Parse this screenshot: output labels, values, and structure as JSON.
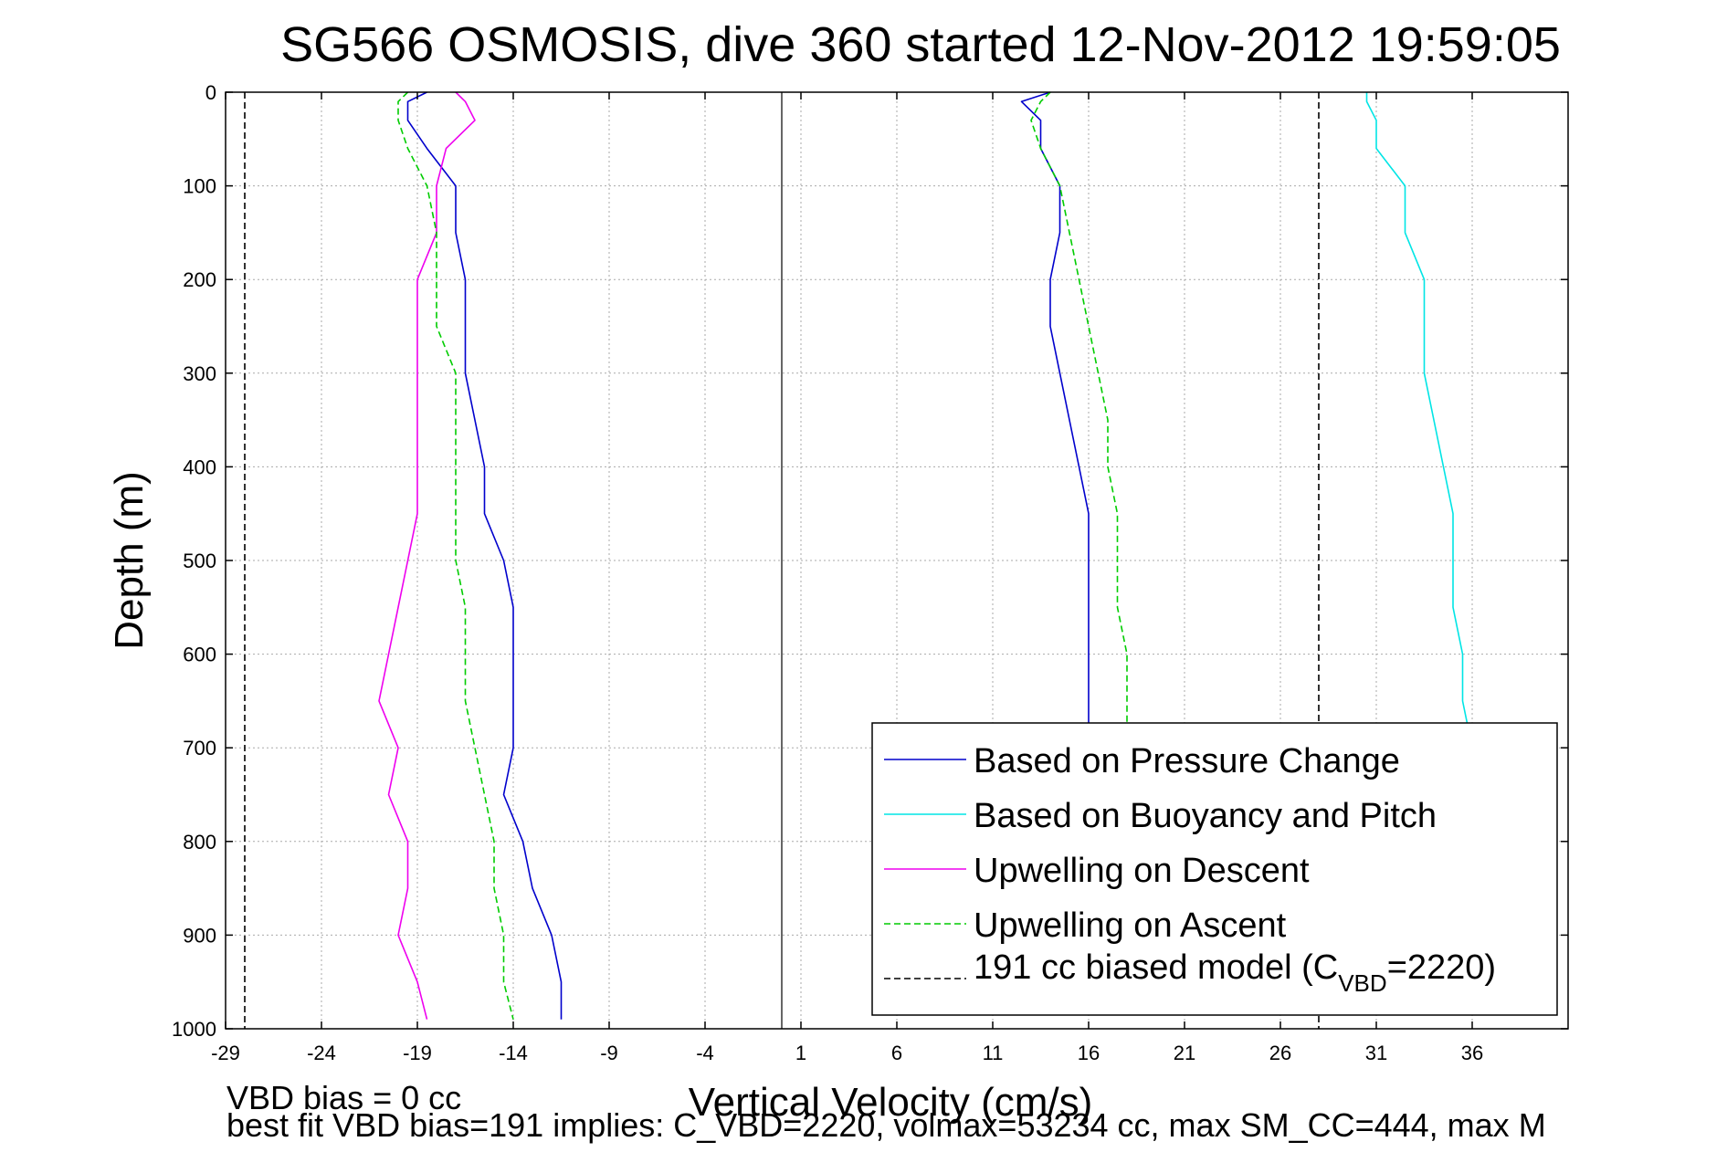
{
  "chart_data": {
    "type": "line",
    "title": "SG566 OSMOSIS, dive 360 started 12-Nov-2012 19:59:05",
    "xlabel": "Vertical Velocity (cm/s)",
    "ylabel": "Depth (m)",
    "xlim": [
      -29,
      41
    ],
    "ylim": [
      0,
      1000
    ],
    "y_reversed": true,
    "grid": true,
    "x_ticks": [
      -29,
      -24,
      -19,
      -14,
      -9,
      -4,
      1,
      6,
      11,
      16,
      21,
      26,
      31,
      36
    ],
    "x_tick_labels": [
      "-29",
      "-24",
      "-19",
      "-14",
      "-9",
      "-4",
      "1",
      "6",
      "11",
      "16",
      "21",
      "26",
      "31",
      "36"
    ],
    "y_ticks": [
      0,
      100,
      200,
      300,
      400,
      500,
      600,
      700,
      800,
      900,
      1000
    ],
    "y_tick_labels": [
      "0",
      "100",
      "200",
      "300",
      "400",
      "500",
      "600",
      "700",
      "800",
      "900",
      "1000"
    ],
    "zero_line_x": 0,
    "legend_position": "bottom-right",
    "legend": {
      "pressure": "Based on Pressure Change",
      "buoyancy": "Based on Buoyancy and Pitch",
      "descent": "Upwelling on Descent",
      "ascent": "Upwelling on Ascent",
      "model_prefix": "191 cc biased model (C",
      "model_sub": "VBD",
      "model_suffix": "=2220)"
    },
    "series": [
      {
        "key": "pressure_descent",
        "color": "#0000cc",
        "style": "solid",
        "depth": [
          0,
          10,
          30,
          60,
          100,
          150,
          200,
          250,
          300,
          350,
          400,
          450,
          500,
          550,
          600,
          650,
          700,
          750,
          800,
          850,
          900,
          950,
          990
        ],
        "values": [
          -18.5,
          -19.5,
          -19.5,
          -18.5,
          -17.0,
          -17.0,
          -16.5,
          -16.5,
          -16.5,
          -16.0,
          -15.5,
          -15.5,
          -14.5,
          -14.0,
          -14.0,
          -14.0,
          -14.0,
          -14.5,
          -13.5,
          -13.0,
          -12.0,
          -11.5,
          -11.5
        ]
      },
      {
        "key": "pressure_ascent",
        "color": "#0000cc",
        "style": "solid",
        "depth": [
          0,
          10,
          30,
          60,
          100,
          150,
          200,
          250,
          300,
          350,
          400,
          450,
          500,
          550,
          600,
          650,
          700
        ],
        "values": [
          14.0,
          12.5,
          13.5,
          13.5,
          14.5,
          14.5,
          14.0,
          14.0,
          14.5,
          15.0,
          15.5,
          16.0,
          16.0,
          16.0,
          16.0,
          16.0,
          16.0
        ]
      },
      {
        "key": "buoyancy_ascent",
        "color": "#00e5e5",
        "style": "solid",
        "depth": [
          0,
          10,
          30,
          60,
          100,
          150,
          200,
          250,
          300,
          350,
          400,
          450,
          500,
          550,
          600,
          650,
          700,
          750
        ],
        "values": [
          30.5,
          30.5,
          31.0,
          31.0,
          32.5,
          32.5,
          33.5,
          33.5,
          33.5,
          34.0,
          34.5,
          35.0,
          35.0,
          35.0,
          35.5,
          35.5,
          36.0,
          36.0
        ]
      },
      {
        "key": "upwelling_descent",
        "color": "#ee00ee",
        "style": "solid",
        "depth": [
          0,
          10,
          30,
          60,
          100,
          150,
          200,
          250,
          300,
          350,
          400,
          450,
          500,
          550,
          600,
          650,
          700,
          750,
          800,
          850,
          900,
          950,
          990
        ],
        "values": [
          -17.0,
          -16.5,
          -16.0,
          -17.5,
          -18.0,
          -18.0,
          -19.0,
          -19.0,
          -19.0,
          -19.0,
          -19.0,
          -19.0,
          -19.5,
          -20.0,
          -20.5,
          -21.0,
          -20.0,
          -20.5,
          -19.5,
          -19.5,
          -20.0,
          -19.0,
          -18.5
        ]
      },
      {
        "key": "upwelling_ascent",
        "color": "#00cc00",
        "style": "dashed",
        "depth": [
          0,
          10,
          30,
          60,
          100,
          150,
          200,
          250,
          300,
          350,
          400,
          450,
          500,
          550,
          600,
          650,
          700,
          750,
          800,
          850,
          900,
          950,
          990
        ],
        "values": [
          -19.5,
          -20.0,
          -20.0,
          -19.5,
          -18.5,
          -18.0,
          -18.0,
          -18.0,
          -17.0,
          -17.0,
          -17.0,
          -17.0,
          -17.0,
          -16.5,
          -16.5,
          -16.5,
          -16.0,
          -15.5,
          -15.0,
          -15.0,
          -14.5,
          -14.5,
          -14.0
        ]
      },
      {
        "key": "upwelling_ascent_right",
        "color": "#00cc00",
        "style": "dashed",
        "depth": [
          0,
          10,
          30,
          60,
          100,
          150,
          200,
          250,
          300,
          350,
          400,
          450,
          500,
          550,
          600,
          650,
          700
        ],
        "values": [
          14.0,
          13.5,
          13.0,
          13.5,
          14.5,
          15.0,
          15.5,
          16.0,
          16.5,
          17.0,
          17.0,
          17.5,
          17.5,
          17.5,
          18.0,
          18.0,
          18.0
        ]
      },
      {
        "key": "model_descent",
        "color": "#000000",
        "style": "dashed",
        "depth": [
          0,
          1000
        ],
        "values": [
          -28,
          -28
        ]
      },
      {
        "key": "model_ascent",
        "color": "#000000",
        "style": "dashed",
        "depth": [
          0,
          1000
        ],
        "values": [
          28,
          28
        ]
      }
    ],
    "footer": {
      "line1": "VBD bias = 0 cc",
      "line2": "best fit VBD bias=191 implies: C_VBD=2220, volmax=53234 cc, max SM_CC=444, max M"
    }
  }
}
